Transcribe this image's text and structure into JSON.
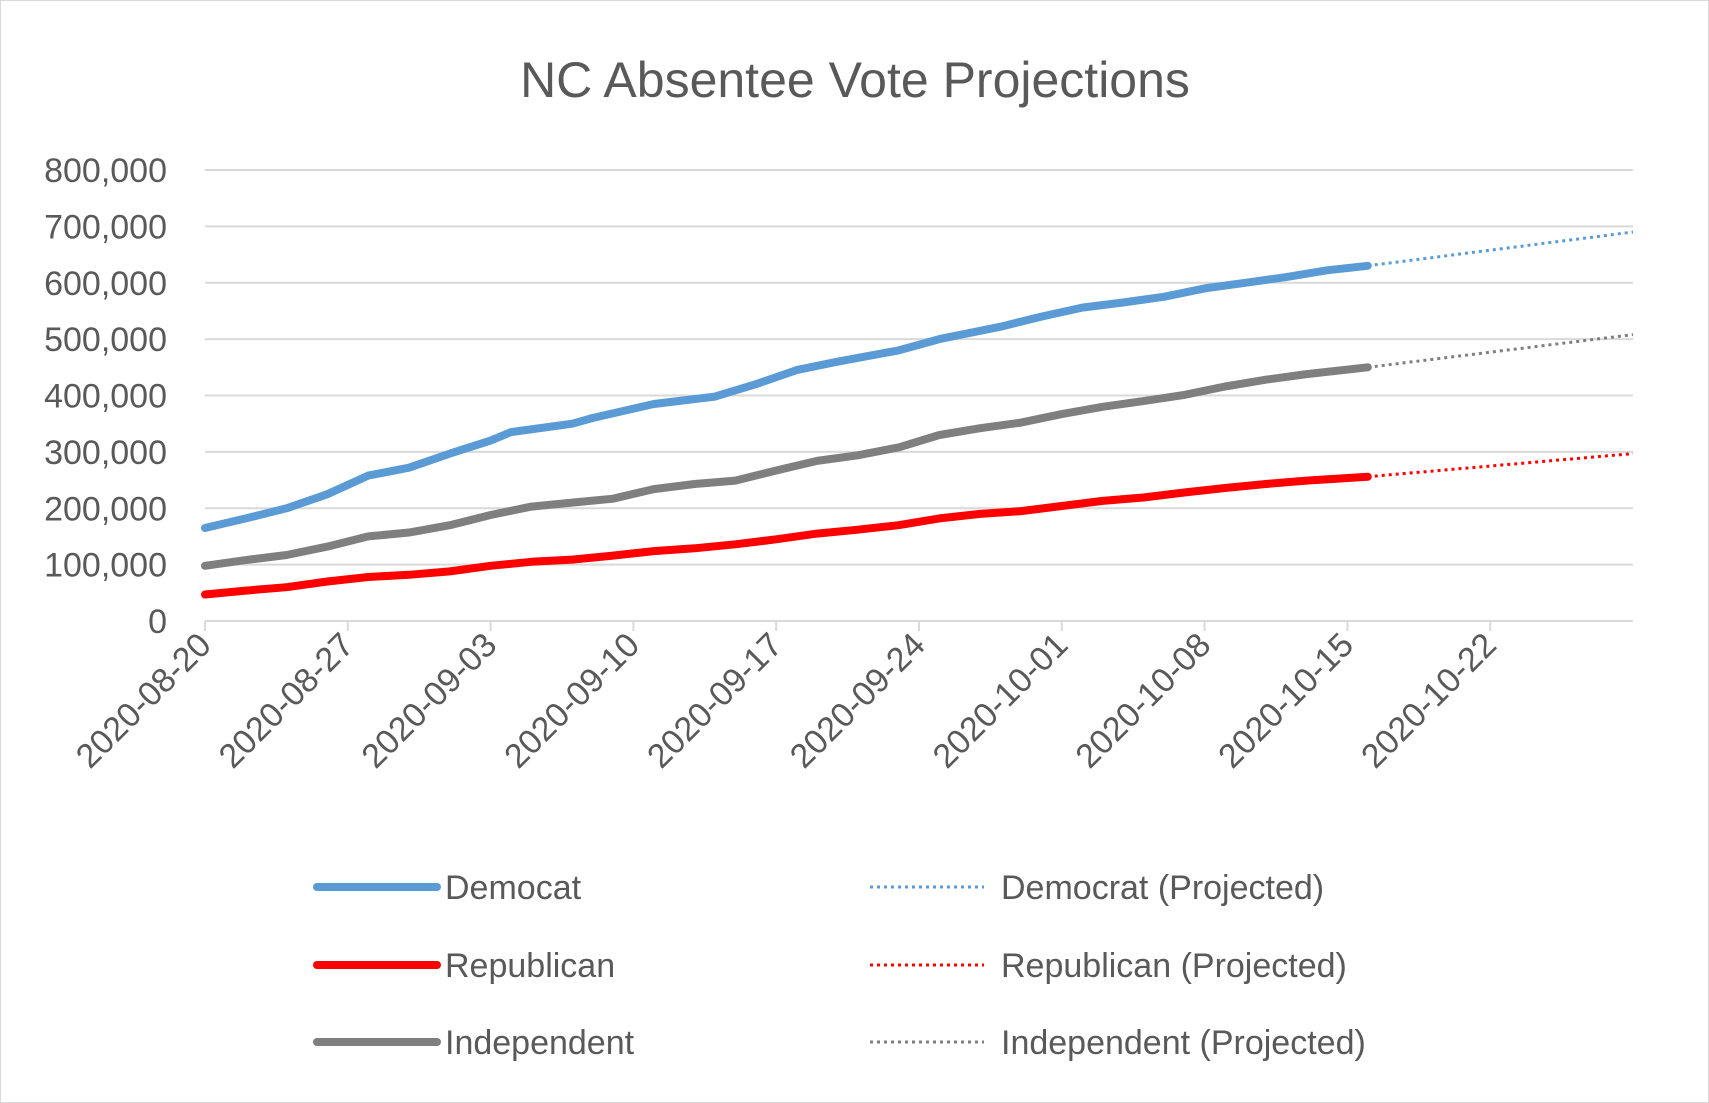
{
  "chart_data": {
    "type": "line",
    "title": "NC Absentee Vote Projections",
    "xlabel": "",
    "ylabel": "",
    "x_axis": {
      "type": "date",
      "min": "2020-08-20",
      "max": "2020-10-29",
      "tick_labels": [
        "2020-08-20",
        "2020-08-27",
        "2020-09-03",
        "2020-09-10",
        "2020-09-17",
        "2020-09-24",
        "2020-10-01",
        "2020-10-08",
        "2020-10-15",
        "2020-10-22"
      ]
    },
    "y_axis": {
      "min": 0,
      "max": 800000,
      "tick_labels": [
        "0",
        "100,000",
        "200,000",
        "300,000",
        "400,000",
        "500,000",
        "600,000",
        "700,000",
        "800,000"
      ]
    },
    "grid": "horizontal",
    "legend_position": "bottom",
    "series": [
      {
        "name": "Democat",
        "color": "#5B9BD5",
        "style": "solid",
        "points": [
          [
            "2020-08-20",
            165000
          ],
          [
            "2020-08-22",
            182000
          ],
          [
            "2020-08-24",
            200000
          ],
          [
            "2020-08-26",
            225000
          ],
          [
            "2020-08-28",
            258000
          ],
          [
            "2020-08-30",
            272000
          ],
          [
            "2020-09-01",
            297000
          ],
          [
            "2020-09-03",
            320000
          ],
          [
            "2020-09-04",
            335000
          ],
          [
            "2020-09-07",
            350000
          ],
          [
            "2020-09-08",
            360000
          ],
          [
            "2020-09-11",
            385000
          ],
          [
            "2020-09-14",
            398000
          ],
          [
            "2020-09-16",
            420000
          ],
          [
            "2020-09-18",
            445000
          ],
          [
            "2020-09-20",
            460000
          ],
          [
            "2020-09-23",
            480000
          ],
          [
            "2020-09-25",
            500000
          ],
          [
            "2020-09-28",
            522000
          ],
          [
            "2020-09-30",
            540000
          ],
          [
            "2020-10-02",
            556000
          ],
          [
            "2020-10-04",
            565000
          ],
          [
            "2020-10-06",
            575000
          ],
          [
            "2020-10-08",
            590000
          ],
          [
            "2020-10-10",
            600000
          ],
          [
            "2020-10-12",
            610000
          ],
          [
            "2020-10-14",
            622000
          ],
          [
            "2020-10-16",
            630000
          ]
        ]
      },
      {
        "name": "Republican",
        "color": "#FF0000",
        "style": "solid",
        "points": [
          [
            "2020-08-20",
            47000
          ],
          [
            "2020-08-22",
            54000
          ],
          [
            "2020-08-24",
            60000
          ],
          [
            "2020-08-26",
            70000
          ],
          [
            "2020-08-28",
            78000
          ],
          [
            "2020-08-30",
            82000
          ],
          [
            "2020-09-01",
            88000
          ],
          [
            "2020-09-03",
            98000
          ],
          [
            "2020-09-05",
            105000
          ],
          [
            "2020-09-07",
            109000
          ],
          [
            "2020-09-09",
            116000
          ],
          [
            "2020-09-11",
            124000
          ],
          [
            "2020-09-13",
            129000
          ],
          [
            "2020-09-15",
            136000
          ],
          [
            "2020-09-17",
            145000
          ],
          [
            "2020-09-19",
            155000
          ],
          [
            "2020-09-21",
            162000
          ],
          [
            "2020-09-23",
            170000
          ],
          [
            "2020-09-25",
            182000
          ],
          [
            "2020-09-27",
            190000
          ],
          [
            "2020-09-29",
            195000
          ],
          [
            "2020-10-01",
            204000
          ],
          [
            "2020-10-03",
            213000
          ],
          [
            "2020-10-05",
            219000
          ],
          [
            "2020-10-07",
            228000
          ],
          [
            "2020-10-09",
            236000
          ],
          [
            "2020-10-11",
            243000
          ],
          [
            "2020-10-13",
            249000
          ],
          [
            "2020-10-16",
            256000
          ]
        ]
      },
      {
        "name": "Independent",
        "color": "#7F7F7F",
        "style": "solid",
        "points": [
          [
            "2020-08-20",
            98000
          ],
          [
            "2020-08-22",
            108000
          ],
          [
            "2020-08-24",
            117000
          ],
          [
            "2020-08-26",
            132000
          ],
          [
            "2020-08-28",
            150000
          ],
          [
            "2020-08-30",
            157000
          ],
          [
            "2020-09-01",
            170000
          ],
          [
            "2020-09-03",
            188000
          ],
          [
            "2020-09-05",
            203000
          ],
          [
            "2020-09-07",
            210000
          ],
          [
            "2020-09-09",
            217000
          ],
          [
            "2020-09-11",
            234000
          ],
          [
            "2020-09-13",
            243000
          ],
          [
            "2020-09-15",
            249000
          ],
          [
            "2020-09-17",
            267000
          ],
          [
            "2020-09-19",
            284000
          ],
          [
            "2020-09-21",
            294000
          ],
          [
            "2020-09-23",
            308000
          ],
          [
            "2020-09-25",
            330000
          ],
          [
            "2020-09-27",
            342000
          ],
          [
            "2020-09-29",
            352000
          ],
          [
            "2020-10-01",
            367000
          ],
          [
            "2020-10-03",
            380000
          ],
          [
            "2020-10-05",
            390000
          ],
          [
            "2020-10-07",
            401000
          ],
          [
            "2020-10-09",
            416000
          ],
          [
            "2020-10-11",
            428000
          ],
          [
            "2020-10-13",
            438000
          ],
          [
            "2020-10-16",
            450000
          ]
        ]
      },
      {
        "name": "Democrat (Projected)",
        "color": "#5B9BD5",
        "style": "dotted",
        "points": [
          [
            "2020-10-16",
            630000
          ],
          [
            "2020-10-29",
            690000
          ]
        ]
      },
      {
        "name": "Republican (Projected)",
        "color": "#FF0000",
        "style": "dotted",
        "points": [
          [
            "2020-10-16",
            256000
          ],
          [
            "2020-10-29",
            297000
          ]
        ]
      },
      {
        "name": "Independent (Projected)",
        "color": "#7F7F7F",
        "style": "dotted",
        "points": [
          [
            "2020-10-16",
            450000
          ],
          [
            "2020-10-29",
            508000
          ]
        ]
      }
    ],
    "legend": [
      {
        "name": "Democat",
        "color": "#5B9BD5",
        "style": "solid"
      },
      {
        "name": "Democrat (Projected)",
        "color": "#5B9BD5",
        "style": "dotted"
      },
      {
        "name": "Republican",
        "color": "#FF0000",
        "style": "solid"
      },
      {
        "name": "Republican (Projected)",
        "color": "#FF0000",
        "style": "dotted"
      },
      {
        "name": "Independent",
        "color": "#7F7F7F",
        "style": "solid"
      },
      {
        "name": "Independent (Projected)",
        "color": "#7F7F7F",
        "style": "dotted"
      }
    ]
  }
}
